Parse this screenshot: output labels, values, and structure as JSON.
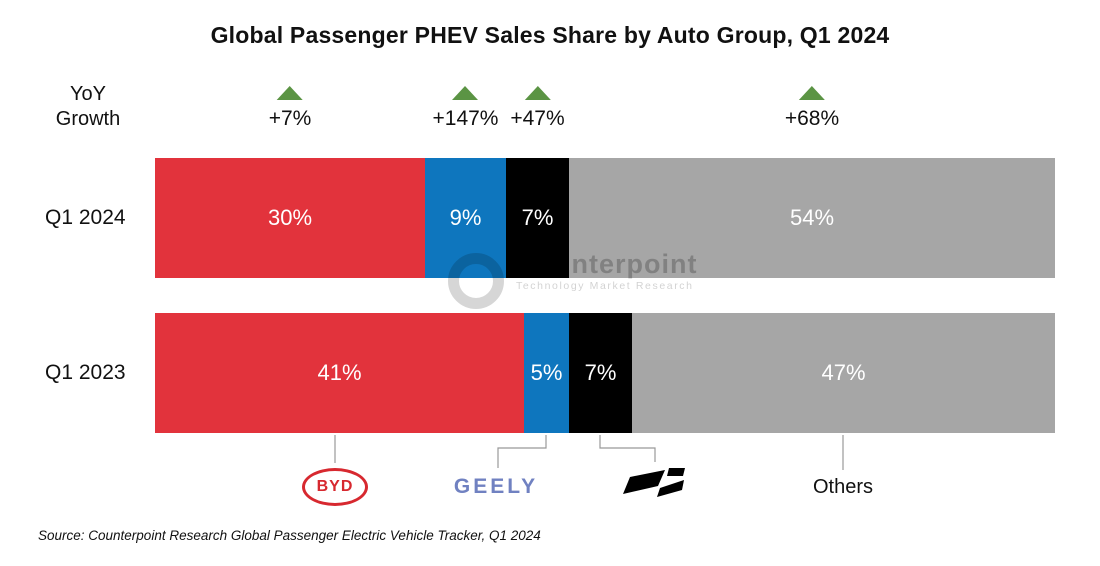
{
  "title": "Global Passenger PHEV Sales Share by Auto Group, Q1 2024",
  "yoy": {
    "label_line1": "YoY",
    "label_line2": "Growth"
  },
  "chart_data": {
    "type": "bar",
    "orientation": "horizontal-stacked",
    "title": "Global Passenger PHEV Sales Share by Auto Group, Q1 2024",
    "categories": [
      "Q1 2024",
      "Q1 2023"
    ],
    "value_unit": "%",
    "xlim": [
      0,
      100
    ],
    "grid": false,
    "legend_position": "bottom-logos",
    "growth_marker_color": "#5B9444",
    "series": [
      {
        "name": "BYD",
        "color": "#E2333C",
        "values": [
          30,
          41
        ],
        "labels": [
          "30%",
          "41%"
        ],
        "yoy": "+7%"
      },
      {
        "name": "Geely",
        "color": "#0E76BE",
        "values": [
          9,
          5
        ],
        "labels": [
          "9%",
          "5%"
        ],
        "yoy": "+147%"
      },
      {
        "name": "Li Auto",
        "color": "#000000",
        "values": [
          7,
          7
        ],
        "labels": [
          "7%",
          "7%"
        ],
        "yoy": "+47%"
      },
      {
        "name": "Others",
        "color": "#A6A6A6",
        "values": [
          54,
          47
        ],
        "labels": [
          "54%",
          "47%"
        ],
        "yoy": "+68%"
      }
    ]
  },
  "watermark": {
    "brand": "Counterpoint",
    "tagline": "Technology Market Research"
  },
  "logos": {
    "byd_label": "BYD",
    "geely_label": "GEELY",
    "li_auto_icon": "li-auto-logo",
    "others_label": "Others"
  },
  "source": "Source: Counterpoint Research Global Passenger Electric Vehicle Tracker, Q1 2024",
  "colors": {
    "byd_red": "#E2333C",
    "geely_blue": "#0E76BE",
    "li_black": "#000000",
    "others_gray": "#A6A6A6",
    "growth_green": "#5B9444",
    "byd_logo_red": "#D7282F",
    "geely_logo_blue": "#7081C1",
    "connector_gray": "#999999"
  }
}
